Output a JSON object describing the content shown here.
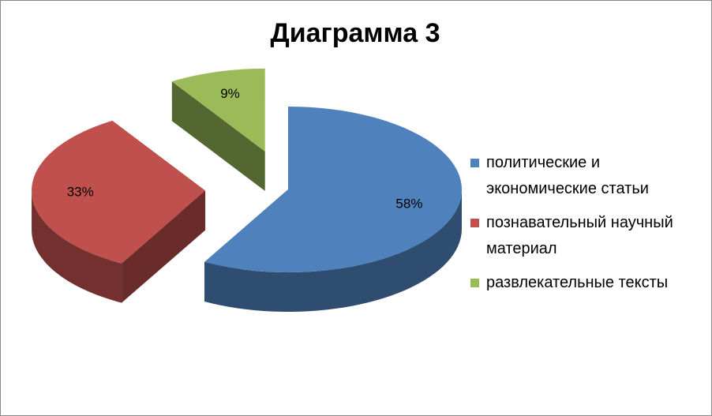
{
  "chart_data": {
    "type": "pie3d",
    "title": "Диаграмма 3",
    "categories": [
      "политические и экономические статьи",
      "познавательный научный материал",
      "развлекательные тексты"
    ],
    "values": [
      58,
      33,
      9
    ],
    "value_labels": [
      "58%",
      "33%",
      "9%"
    ],
    "colors": [
      "#4f81bd",
      "#c0504d",
      "#9bbb59"
    ],
    "legend": "right"
  }
}
